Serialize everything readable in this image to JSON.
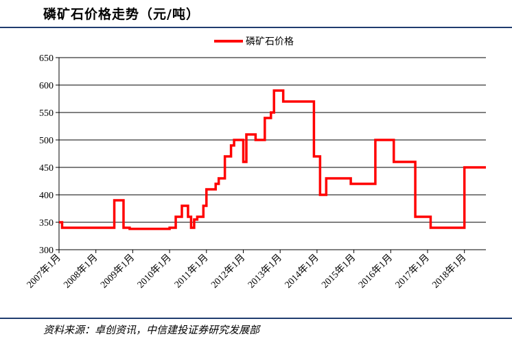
{
  "title": "磷矿石价格走势（元/吨）",
  "source": "资料来源：卓创资讯，中信建投证券研究发展部",
  "colors": {
    "series": "#ff0000",
    "rule": "#1f3c6e",
    "grid": "#000000"
  },
  "chart_data": {
    "type": "line",
    "legend": {
      "position": "top-center"
    },
    "grid": true,
    "ylim": [
      300,
      650
    ],
    "yticks": [
      "300",
      "350",
      "400",
      "450",
      "500",
      "550",
      "600",
      "650"
    ],
    "xlim": [
      "2007-01",
      "2018-08"
    ],
    "xticks": [
      "2007年1月",
      "2008年1月",
      "2009年1月",
      "2010年1月",
      "2011年1月",
      "2012年1月",
      "2013年1月",
      "2014年1月",
      "2015年1月",
      "2016年1月",
      "2017年1月",
      "2018年1月"
    ],
    "series": [
      {
        "name": "磷矿石价格",
        "color": "#ff0000",
        "step": true,
        "points": [
          [
            "2007-01",
            350
          ],
          [
            "2007-02",
            340
          ],
          [
            "2008-07",
            390
          ],
          [
            "2008-10",
            340
          ],
          [
            "2008-12",
            338
          ],
          [
            "2010-01",
            340
          ],
          [
            "2010-03",
            360
          ],
          [
            "2010-05",
            380
          ],
          [
            "2010-07",
            360
          ],
          [
            "2010-08",
            340
          ],
          [
            "2010-09",
            355
          ],
          [
            "2010-10",
            360
          ],
          [
            "2010-12",
            380
          ],
          [
            "2011-01",
            410
          ],
          [
            "2011-04",
            420
          ],
          [
            "2011-05",
            430
          ],
          [
            "2011-07",
            470
          ],
          [
            "2011-09",
            490
          ],
          [
            "2011-10",
            500
          ],
          [
            "2012-01",
            460
          ],
          [
            "2012-02",
            510
          ],
          [
            "2012-05",
            500
          ],
          [
            "2012-08",
            540
          ],
          [
            "2012-10",
            550
          ],
          [
            "2012-11",
            590
          ],
          [
            "2013-02",
            570
          ],
          [
            "2013-12",
            470
          ],
          [
            "2014-02",
            400
          ],
          [
            "2014-04",
            430
          ],
          [
            "2014-12",
            420
          ],
          [
            "2015-08",
            500
          ],
          [
            "2016-02",
            460
          ],
          [
            "2016-09",
            360
          ],
          [
            "2017-02",
            340
          ],
          [
            "2018-01",
            450
          ],
          [
            "2018-08",
            450
          ]
        ]
      }
    ]
  }
}
